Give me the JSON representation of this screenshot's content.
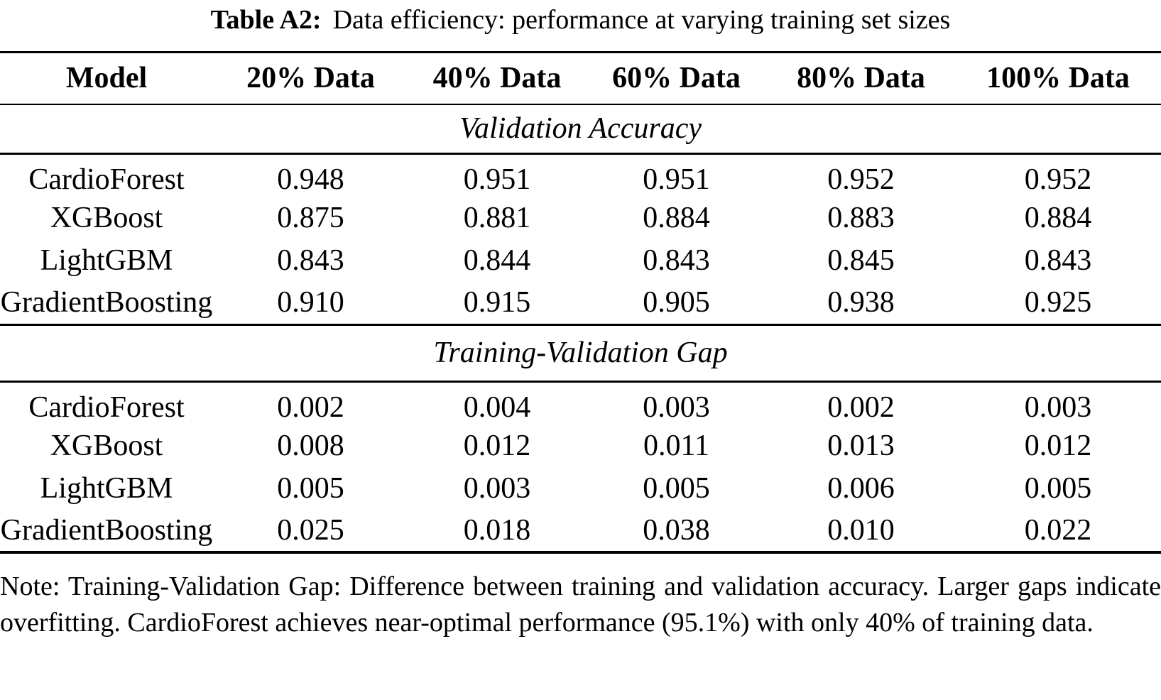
{
  "caption": {
    "label": "Table A2:",
    "text": "Data efficiency: performance at varying training set sizes"
  },
  "table": {
    "columns": [
      "Model",
      "20% Data",
      "40% Data",
      "60% Data",
      "80% Data",
      "100% Data"
    ],
    "sections": [
      {
        "header": "Validation Accuracy",
        "rows": [
          {
            "model": "CardioForest",
            "values": [
              "0.948",
              "0.951",
              "0.951",
              "0.952",
              "0.952"
            ]
          },
          {
            "model": "XGBoost",
            "values": [
              "0.875",
              "0.881",
              "0.884",
              "0.883",
              "0.884"
            ]
          },
          {
            "model": "LightGBM",
            "values": [
              "0.843",
              "0.844",
              "0.843",
              "0.845",
              "0.843"
            ]
          },
          {
            "model": "GradientBoosting",
            "values": [
              "0.910",
              "0.915",
              "0.905",
              "0.938",
              "0.925"
            ]
          }
        ]
      },
      {
        "header": "Training-Validation Gap",
        "rows": [
          {
            "model": "CardioForest",
            "values": [
              "0.002",
              "0.004",
              "0.003",
              "0.002",
              "0.003"
            ]
          },
          {
            "model": "XGBoost",
            "values": [
              "0.008",
              "0.012",
              "0.011",
              "0.013",
              "0.012"
            ]
          },
          {
            "model": "LightGBM",
            "values": [
              "0.005",
              "0.003",
              "0.005",
              "0.006",
              "0.005"
            ]
          },
          {
            "model": "GradientBoosting",
            "values": [
              "0.025",
              "0.018",
              "0.038",
              "0.010",
              "0.022"
            ]
          }
        ]
      }
    ]
  },
  "note": "Note: Training-Validation Gap: Difference between training and validation accuracy. Larger gaps indicate overfitting. CardioForest achieves near-optimal performance (95.1%) with only 40% of training data."
}
